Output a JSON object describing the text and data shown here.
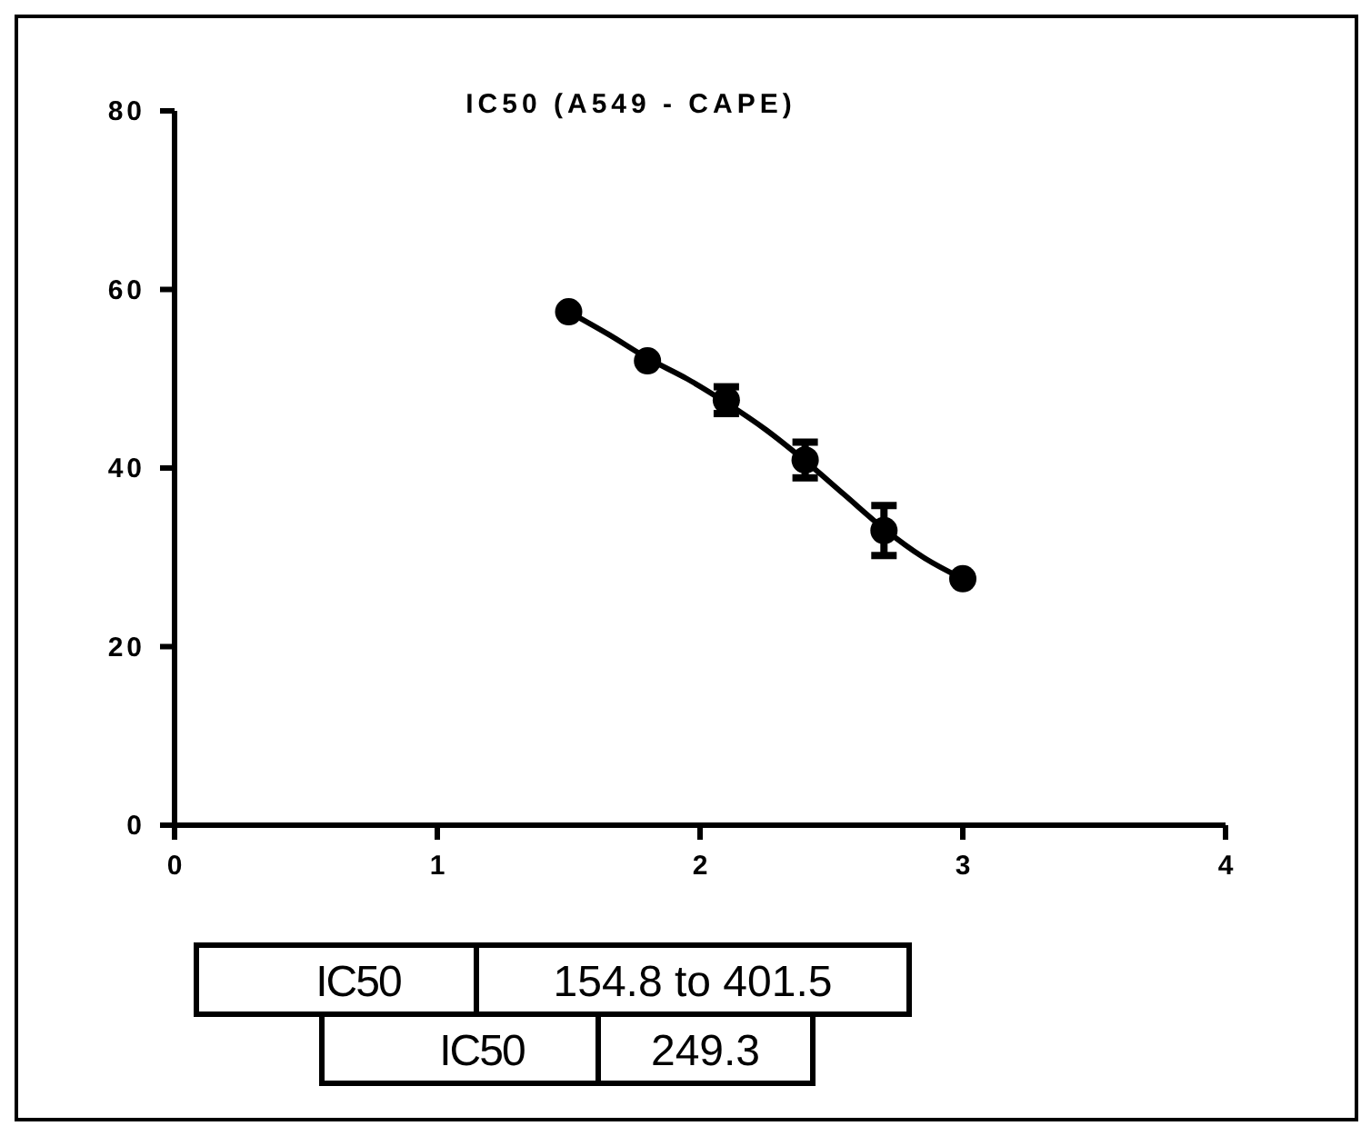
{
  "chart_data": {
    "type": "scatter",
    "title": "IC50 (A549 - CAPE)",
    "xlim": [
      0,
      4
    ],
    "xticks": [
      0,
      1,
      2,
      3,
      4
    ],
    "ylim": [
      0,
      80
    ],
    "yticks": [
      0,
      20,
      40,
      60,
      80
    ],
    "grid": false,
    "series": [
      {
        "color": "#000000",
        "marker": "circle",
        "x": [
          1.5,
          1.8,
          2.1,
          2.4,
          2.7,
          3.0
        ],
        "values": [
          57.5,
          52.0,
          47.6,
          40.9,
          33.0,
          27.6
        ],
        "errors": [
          null,
          null,
          1.5,
          2,
          2.8,
          null
        ]
      },
      {
        "type": "line",
        "color": "#000000",
        "line_style": "solid",
        "marker": "none",
        "x": [
          1.5,
          1.65,
          1.8,
          1.95,
          2.1,
          2.25,
          2.4,
          2.55,
          2.7,
          2.85,
          3.0
        ],
        "values": [
          57.5,
          55,
          52.3,
          50,
          47.3,
          44.3,
          40.8,
          37,
          33.2,
          30,
          27.6
        ]
      }
    ],
    "annotations": [
      "IC50",
      "154.8 to 401.5",
      "IC50",
      "249.3"
    ]
  }
}
